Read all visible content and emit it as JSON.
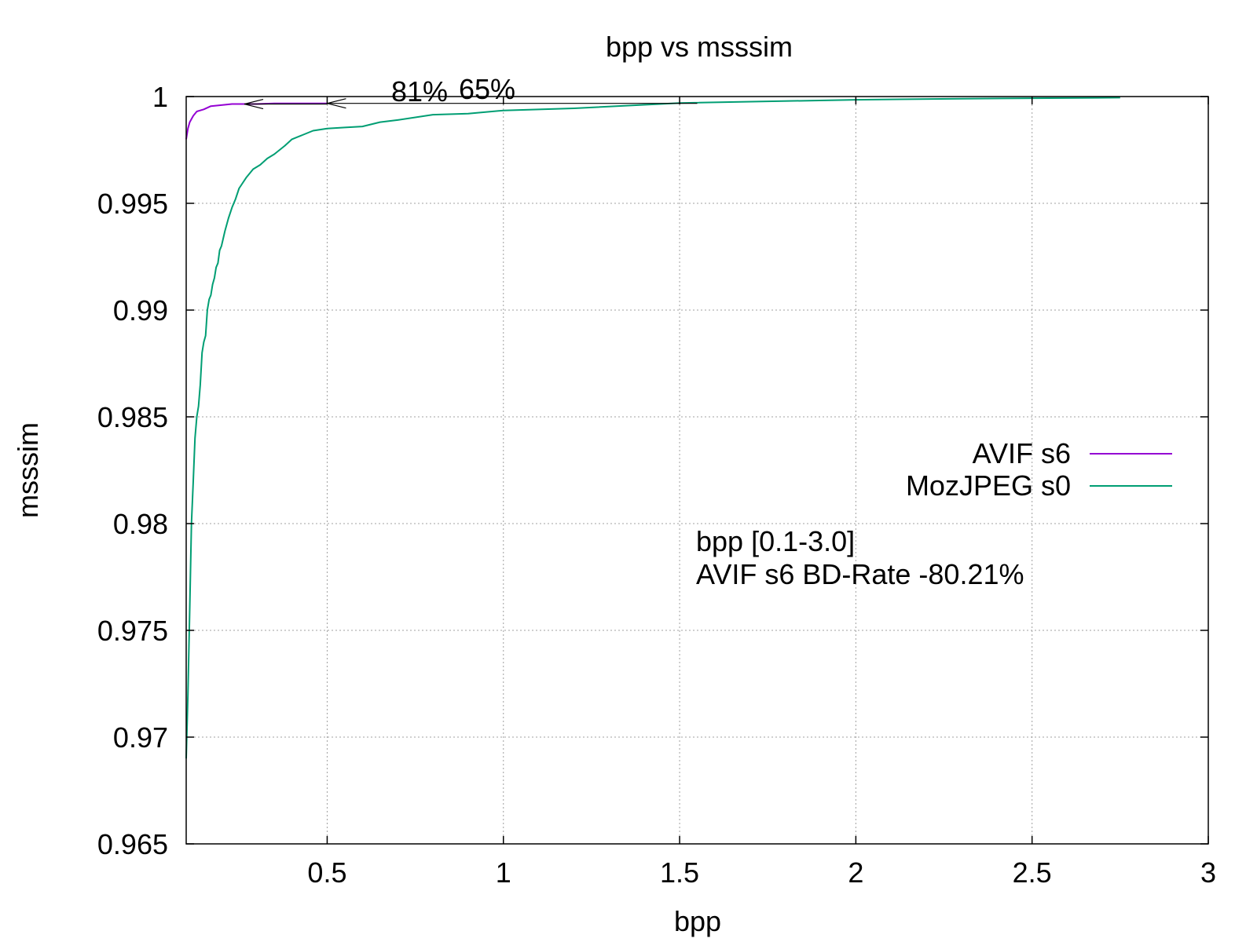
{
  "chart_data": {
    "type": "line",
    "title": "bpp vs msssim",
    "xlabel": "bpp",
    "ylabel": "msssim",
    "xlim": [
      0.1,
      3.0
    ],
    "ylim": [
      0.965,
      1.0
    ],
    "x_ticks": [
      0.5,
      1,
      1.5,
      2,
      2.5,
      3
    ],
    "x_tick_labels": [
      "0.5",
      "1",
      "1.5",
      "2",
      "2.5",
      "3"
    ],
    "y_ticks": [
      0.965,
      0.97,
      0.975,
      0.98,
      0.985,
      0.99,
      0.995,
      1.0
    ],
    "y_tick_labels": [
      "0.965",
      "0.97",
      "0.975",
      "0.98",
      "0.985",
      "0.99",
      "0.995",
      "1"
    ],
    "grid": true,
    "legend_position": "right",
    "series": [
      {
        "name": "AVIF s6",
        "color": "#9400d3",
        "x": [
          0.1,
          0.105,
          0.11,
          0.12,
          0.13,
          0.15,
          0.17,
          0.2,
          0.23,
          0.27,
          0.3,
          0.35,
          0.4,
          0.45,
          0.5
        ],
        "y": [
          0.998,
          0.9985,
          0.9988,
          0.9991,
          0.9993,
          0.9994,
          0.99955,
          0.9996,
          0.99965,
          0.99965,
          0.99965,
          0.99968,
          0.99968,
          0.99968,
          0.99968
        ]
      },
      {
        "name": "MozJPEG s0",
        "color": "#009e73",
        "x": [
          0.1,
          0.105,
          0.11,
          0.115,
          0.12,
          0.125,
          0.13,
          0.135,
          0.14,
          0.145,
          0.15,
          0.155,
          0.16,
          0.165,
          0.17,
          0.175,
          0.18,
          0.185,
          0.19,
          0.195,
          0.2,
          0.21,
          0.22,
          0.23,
          0.24,
          0.25,
          0.27,
          0.29,
          0.31,
          0.33,
          0.35,
          0.38,
          0.4,
          0.43,
          0.46,
          0.5,
          0.55,
          0.6,
          0.65,
          0.7,
          0.8,
          0.9,
          1.0,
          1.2,
          1.5,
          2.0,
          2.3,
          2.75
        ],
        "y": [
          0.969,
          0.972,
          0.976,
          0.98,
          0.982,
          0.984,
          0.985,
          0.9855,
          0.9865,
          0.988,
          0.9885,
          0.9888,
          0.99,
          0.9905,
          0.9907,
          0.9912,
          0.9915,
          0.992,
          0.9922,
          0.9928,
          0.993,
          0.9937,
          0.9943,
          0.9948,
          0.9952,
          0.9957,
          0.9962,
          0.9966,
          0.9968,
          0.9971,
          0.9973,
          0.9977,
          0.998,
          0.9982,
          0.9984,
          0.9985,
          0.99855,
          0.9986,
          0.9988,
          0.9989,
          0.99915,
          0.9992,
          0.99935,
          0.99945,
          0.9997,
          0.99985,
          0.9999,
          0.99995
        ]
      }
    ],
    "annotations": {
      "arrow_labels": [
        "81%",
        "65%"
      ],
      "arrows": [
        {
          "x_from": 0.5,
          "x_to": 0.265,
          "y": 0.99965
        },
        {
          "x_from": 1.55,
          "x_to": 0.5,
          "y": 0.99968
        }
      ],
      "info_lines": [
        "bpp [0.1-3.0]",
        "AVIF s6 BD-Rate -80.21%"
      ],
      "info_color": "#00ff00"
    }
  }
}
